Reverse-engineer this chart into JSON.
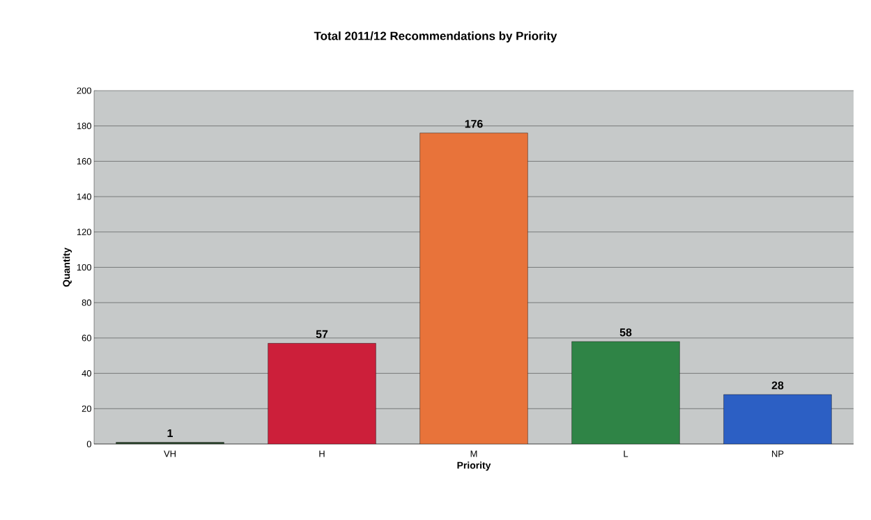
{
  "chart_data": {
    "type": "bar",
    "title": "Total 2011/12 Recommendations by Priority",
    "xlabel": "Priority",
    "ylabel": "Quantity",
    "categories": [
      "VH",
      "H",
      "M",
      "L",
      "NP"
    ],
    "values": [
      1,
      57,
      176,
      58,
      28
    ],
    "colors": [
      "#2f4a30",
      "#cc1f3a",
      "#e8733a",
      "#2f8446",
      "#2c5fc4"
    ],
    "ylim": [
      0,
      200
    ],
    "yticks": [
      0,
      20,
      40,
      60,
      80,
      100,
      120,
      140,
      160,
      180,
      200
    ],
    "grid": "y",
    "data_labels": true
  }
}
